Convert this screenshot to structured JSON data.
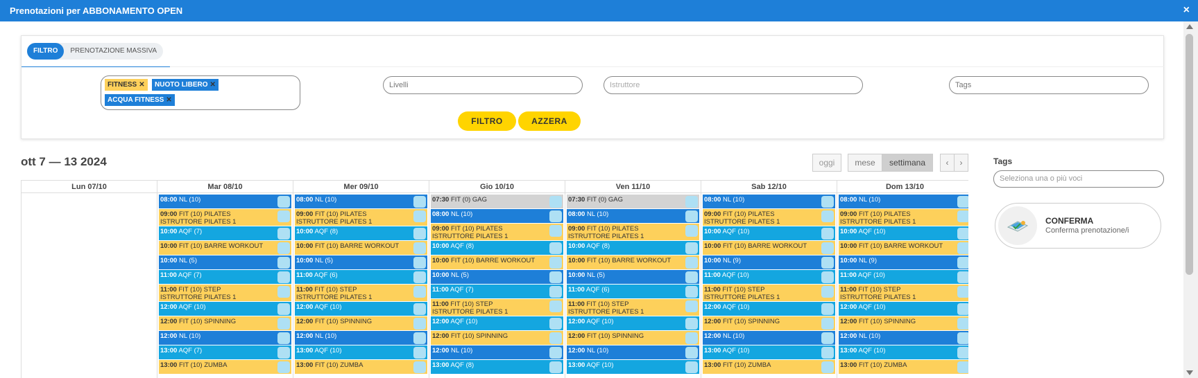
{
  "dialog": {
    "title": "Prenotazioni per ABBONAMENTO OPEN",
    "close": "×"
  },
  "tabs": [
    {
      "label": "FILTRO"
    },
    {
      "label": "PRENOTAZIONE MASSIVA"
    }
  ],
  "filters": {
    "chips": [
      {
        "label": "FITNESS"
      },
      {
        "label": "NUOTO LIBERO"
      },
      {
        "label": "ACQUA FITNESS"
      }
    ],
    "chip_remove": "✕",
    "livelli_placeholder": "Livelli",
    "istruttore_placeholder": "Istruttore",
    "tags_placeholder": "Tags",
    "filter_button": "FILTRO",
    "reset_button": "AZZERA"
  },
  "calendar": {
    "range_title": "ott 7 — 13 2024",
    "today_button": "oggi",
    "month_button": "mese",
    "week_button": "settimana",
    "prev": "‹",
    "next": "›",
    "days": [
      {
        "label": "Lun 07/10",
        "events": []
      },
      {
        "label": "Mar 08/10",
        "events": [
          {
            "time": "08:00",
            "text": "NL (10)",
            "type": "blue"
          },
          {
            "time": "09:00",
            "text": "FIT (10) PILATES",
            "sub": "ISTRUTTORE PILATES 1",
            "type": "yellow"
          },
          {
            "time": "10:00",
            "text": "AQF (7)",
            "type": "cyan"
          },
          {
            "time": "10:00",
            "text": "FIT (10) BARRE WORKOUT",
            "type": "yellow"
          },
          {
            "time": "10:00",
            "text": "NL (5)",
            "type": "blue"
          },
          {
            "time": "11:00",
            "text": "AQF (7)",
            "type": "cyan"
          },
          {
            "time": "11:00",
            "text": "FIT (10) STEP",
            "sub": "ISTRUTTORE PILATES 1",
            "type": "yellow"
          },
          {
            "time": "12:00",
            "text": "AQF (10)",
            "type": "cyan"
          },
          {
            "time": "12:00",
            "text": "FIT (10) SPINNING",
            "type": "yellow"
          },
          {
            "time": "12:00",
            "text": "NL (10)",
            "type": "blue"
          },
          {
            "time": "13:00",
            "text": "AQF (7)",
            "type": "cyan"
          },
          {
            "time": "13:00",
            "text": "FIT (10) ZUMBA",
            "type": "yellow"
          }
        ]
      },
      {
        "label": "Mer 09/10",
        "events": [
          {
            "time": "08:00",
            "text": "NL (10)",
            "type": "blue"
          },
          {
            "time": "09:00",
            "text": "FIT (10) PILATES",
            "sub": "ISTRUTTORE PILATES 1",
            "type": "yellow"
          },
          {
            "time": "10:00",
            "text": "AQF (8)",
            "type": "cyan"
          },
          {
            "time": "10:00",
            "text": "FIT (10) BARRE WORKOUT",
            "type": "yellow"
          },
          {
            "time": "10:00",
            "text": "NL (5)",
            "type": "blue"
          },
          {
            "time": "11:00",
            "text": "AQF (6)",
            "type": "cyan"
          },
          {
            "time": "11:00",
            "text": "FIT (10) STEP",
            "sub": "ISTRUTTORE PILATES 1",
            "type": "yellow"
          },
          {
            "time": "12:00",
            "text": "AQF (10)",
            "type": "cyan"
          },
          {
            "time": "12:00",
            "text": "FIT (10) SPINNING",
            "type": "yellow"
          },
          {
            "time": "12:00",
            "text": "NL (10)",
            "type": "blue"
          },
          {
            "time": "13:00",
            "text": "AQF (10)",
            "type": "cyan"
          },
          {
            "time": "13:00",
            "text": "FIT (10) ZUMBA",
            "type": "yellow"
          }
        ]
      },
      {
        "label": "Gio 10/10",
        "events": [
          {
            "time": "07:30",
            "text": "FIT (0) GAG",
            "type": "gray"
          },
          {
            "time": "08:00",
            "text": "NL (10)",
            "type": "blue"
          },
          {
            "time": "09:00",
            "text": "FIT (10) PILATES",
            "sub": "ISTRUTTORE PILATES 1",
            "type": "yellow"
          },
          {
            "time": "10:00",
            "text": "AQF (8)",
            "type": "cyan"
          },
          {
            "time": "10:00",
            "text": "FIT (10) BARRE WORKOUT",
            "type": "yellow"
          },
          {
            "time": "10:00",
            "text": "NL (5)",
            "type": "blue"
          },
          {
            "time": "11:00",
            "text": "AQF (7)",
            "type": "cyan"
          },
          {
            "time": "11:00",
            "text": "FIT (10) STEP",
            "sub": "ISTRUTTORE PILATES 1",
            "type": "yellow"
          },
          {
            "time": "12:00",
            "text": "AQF (10)",
            "type": "cyan"
          },
          {
            "time": "12:00",
            "text": "FIT (10) SPINNING",
            "type": "yellow"
          },
          {
            "time": "12:00",
            "text": "NL (10)",
            "type": "blue"
          },
          {
            "time": "13:00",
            "text": "AQF (8)",
            "type": "cyan"
          }
        ]
      },
      {
        "label": "Ven 11/10",
        "events": [
          {
            "time": "07:30",
            "text": "FIT (0) GAG",
            "type": "gray"
          },
          {
            "time": "08:00",
            "text": "NL (10)",
            "type": "blue"
          },
          {
            "time": "09:00",
            "text": "FIT (10) PILATES",
            "sub": "ISTRUTTORE PILATES 1",
            "type": "yellow"
          },
          {
            "time": "10:00",
            "text": "AQF (8)",
            "type": "cyan"
          },
          {
            "time": "10:00",
            "text": "FIT (10) BARRE WORKOUT",
            "type": "yellow"
          },
          {
            "time": "10:00",
            "text": "NL (5)",
            "type": "blue"
          },
          {
            "time": "11:00",
            "text": "AQF (6)",
            "type": "cyan"
          },
          {
            "time": "11:00",
            "text": "FIT (10) STEP",
            "sub": "ISTRUTTORE PILATES 1",
            "type": "yellow"
          },
          {
            "time": "12:00",
            "text": "AQF (10)",
            "type": "cyan"
          },
          {
            "time": "12:00",
            "text": "FIT (10) SPINNING",
            "type": "yellow"
          },
          {
            "time": "12:00",
            "text": "NL (10)",
            "type": "blue"
          },
          {
            "time": "13:00",
            "text": "AQF (10)",
            "type": "cyan"
          }
        ]
      },
      {
        "label": "Sab 12/10",
        "events": [
          {
            "time": "08:00",
            "text": "NL (10)",
            "type": "blue"
          },
          {
            "time": "09:00",
            "text": "FIT (10) PILATES",
            "sub": "ISTRUTTORE PILATES 1",
            "type": "yellow"
          },
          {
            "time": "10:00",
            "text": "AQF (10)",
            "type": "cyan"
          },
          {
            "time": "10:00",
            "text": "FIT (10) BARRE WORKOUT",
            "type": "yellow"
          },
          {
            "time": "10:00",
            "text": "NL (9)",
            "type": "blue"
          },
          {
            "time": "11:00",
            "text": "AQF (10)",
            "type": "cyan"
          },
          {
            "time": "11:00",
            "text": "FIT (10) STEP",
            "sub": "ISTRUTTORE PILATES 1",
            "type": "yellow"
          },
          {
            "time": "12:00",
            "text": "AQF (10)",
            "type": "cyan"
          },
          {
            "time": "12:00",
            "text": "FIT (10) SPINNING",
            "type": "yellow"
          },
          {
            "time": "12:00",
            "text": "NL (10)",
            "type": "blue"
          },
          {
            "time": "13:00",
            "text": "AQF (10)",
            "type": "cyan"
          },
          {
            "time": "13:00",
            "text": "FIT (10) ZUMBA",
            "type": "yellow"
          }
        ]
      },
      {
        "label": "Dom 13/10",
        "events": [
          {
            "time": "08:00",
            "text": "NL (10)",
            "type": "blue"
          },
          {
            "time": "09:00",
            "text": "FIT (10) PILATES",
            "sub": "ISTRUTTORE PILATES 1",
            "type": "yellow"
          },
          {
            "time": "10:00",
            "text": "AQF (10)",
            "type": "cyan"
          },
          {
            "time": "10:00",
            "text": "FIT (10) BARRE WORKOUT",
            "type": "yellow"
          },
          {
            "time": "10:00",
            "text": "NL (9)",
            "type": "blue"
          },
          {
            "time": "11:00",
            "text": "AQF (10)",
            "type": "cyan"
          },
          {
            "time": "11:00",
            "text": "FIT (10) STEP",
            "sub": "ISTRUTTORE PILATES 1",
            "type": "yellow"
          },
          {
            "time": "12:00",
            "text": "AQF (10)",
            "type": "cyan"
          },
          {
            "time": "12:00",
            "text": "FIT (10) SPINNING",
            "type": "yellow"
          },
          {
            "time": "12:00",
            "text": "NL (10)",
            "type": "blue"
          },
          {
            "time": "13:00",
            "text": "AQF (10)",
            "type": "cyan"
          },
          {
            "time": "13:00",
            "text": "FIT (10) ZUMBA",
            "type": "yellow"
          }
        ]
      }
    ]
  },
  "sidebar": {
    "tags_label": "Tags",
    "tags_placeholder": "Seleziona una o più voci",
    "confirm_title": "CONFERMA",
    "confirm_subtitle": "Conferma prenotazione/i",
    "confirm_icon": "ticket-icon"
  },
  "colors": {
    "accent": "#1e7fd8",
    "yellow_button": "#ffd400",
    "fitness": "#fdd05b",
    "aqf": "#14a6e0",
    "nl": "#1e7fd8",
    "gag": "#d3d3d3"
  }
}
